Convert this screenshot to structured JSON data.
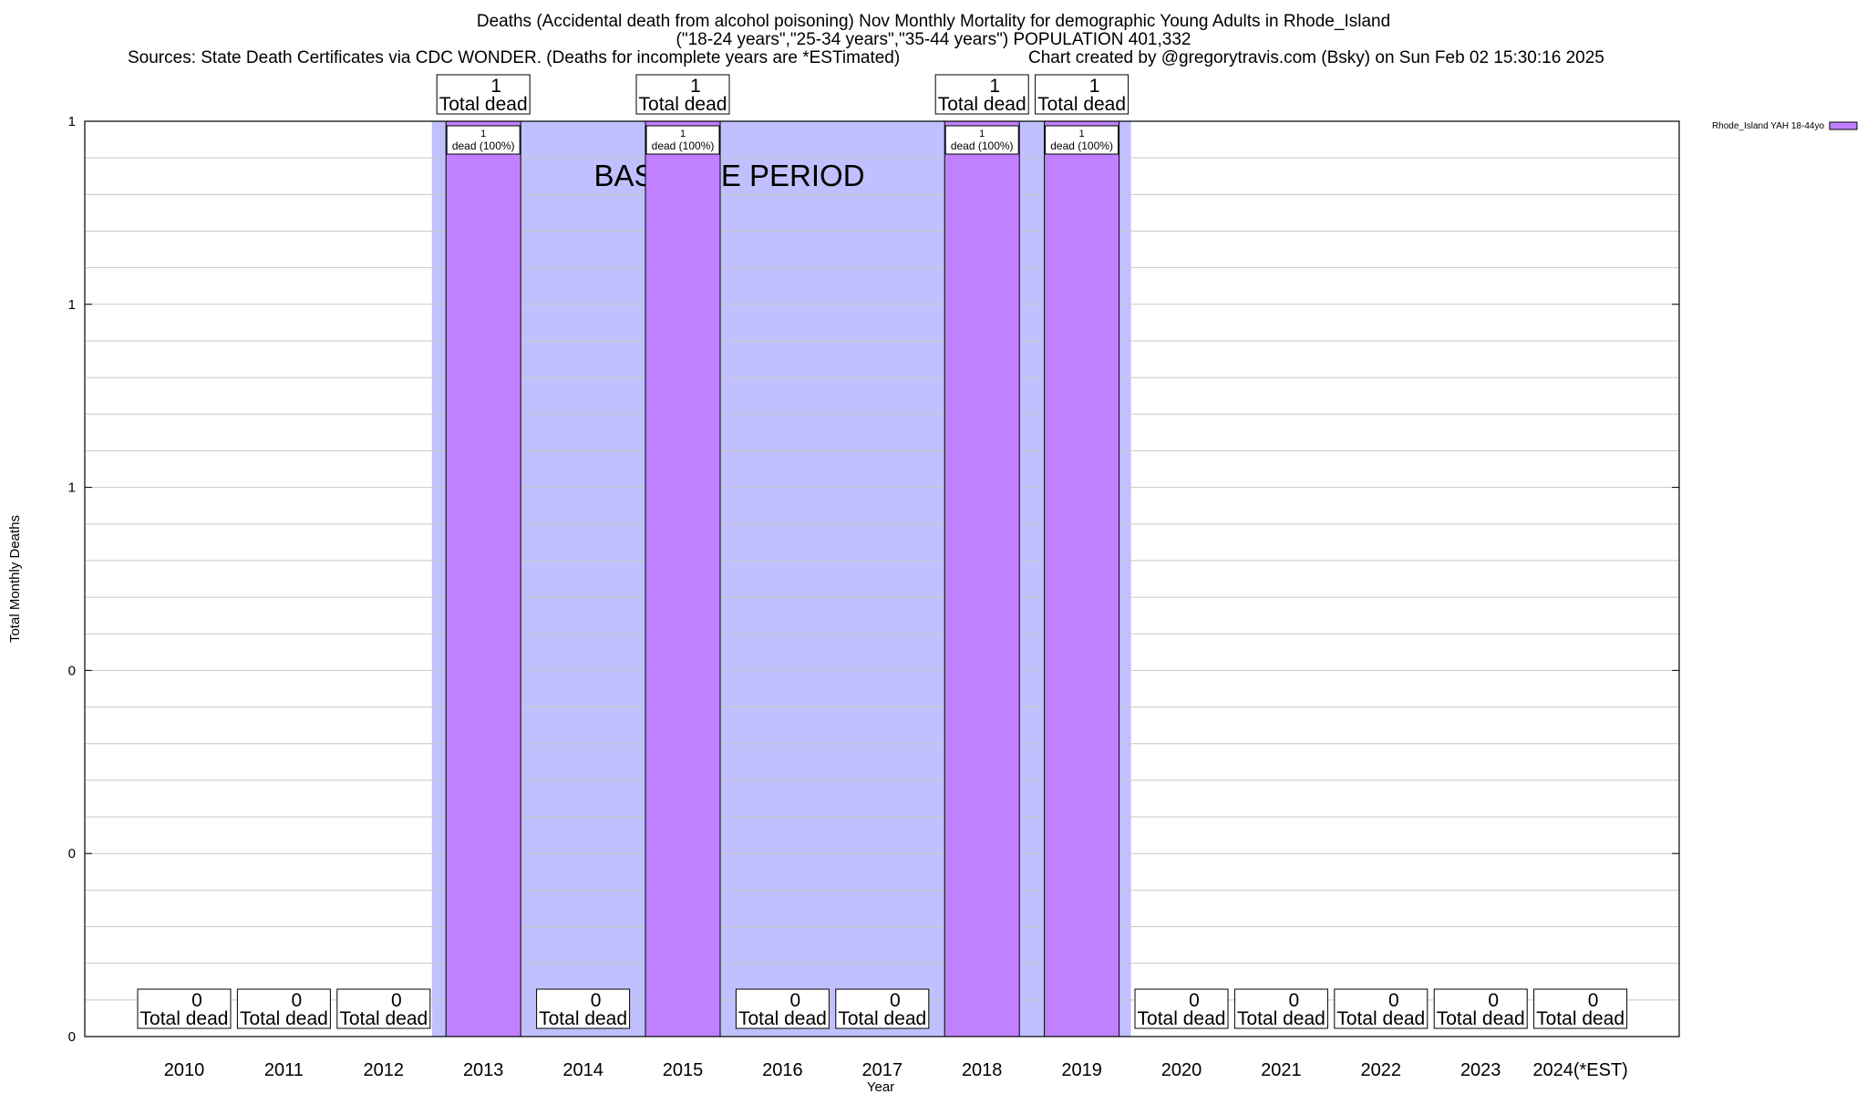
{
  "titles": {
    "line1": "Deaths (Accidental death from alcohol poisoning) Nov Monthly Mortality for demographic Young Adults in Rhode_Island",
    "line2": "(\"18-24 years\",\"25-34 years\",\"35-44 years\") POPULATION 401,332",
    "line3": "Sources: State Death Certificates via CDC WONDER. (Deaths for incomplete years are *ESTimated)",
    "line4": "Chart created by @gregorytravis.com (Bsky) on Sun Feb 02 15:30:16 2025"
  },
  "chart_data": {
    "type": "bar",
    "xlabel": "Year",
    "ylabel": "Total Monthly Deaths",
    "ylim": [
      0,
      1
    ],
    "ytick_labels": [
      "0",
      "0",
      "0",
      "1",
      "1",
      "1"
    ],
    "categories": [
      "2010",
      "2011",
      "2012",
      "2013",
      "2014",
      "2015",
      "2016",
      "2017",
      "2018",
      "2019",
      "2020",
      "2021",
      "2022",
      "2023",
      "2024(*EST)"
    ],
    "series": [
      {
        "name": "Rhode_Island YAH 18-44yo",
        "values": [
          0,
          0,
          0,
          1,
          0,
          1,
          0,
          0,
          1,
          1,
          0,
          0,
          0,
          0,
          0
        ],
        "color": "#c080ff"
      }
    ],
    "total_labels": [
      "0\nTotal dead",
      "0\nTotal dead",
      "0\nTotal dead",
      "1\nTotal dead",
      "0\nTotal dead",
      "1\nTotal dead",
      "0\nTotal dead",
      "0\nTotal dead",
      "1\nTotal dead",
      "1\nTotal dead",
      "0\nTotal dead",
      "0\nTotal dead",
      "0\nTotal dead",
      "0\nTotal dead",
      "0\nTotal dead"
    ],
    "bar_labels": [
      "",
      "",
      "",
      "1\ndead (100%)",
      "",
      "1\ndead (100%)",
      "",
      "",
      "1\ndead (100%)",
      "1\ndead (100%)",
      "",
      "",
      "",
      "",
      ""
    ],
    "baseline": {
      "label": "BASELINE PERIOD",
      "from": "2012",
      "to": "2019",
      "color": "#c0c0ff"
    },
    "legend": {
      "placement": "top-right"
    },
    "grid": true
  }
}
